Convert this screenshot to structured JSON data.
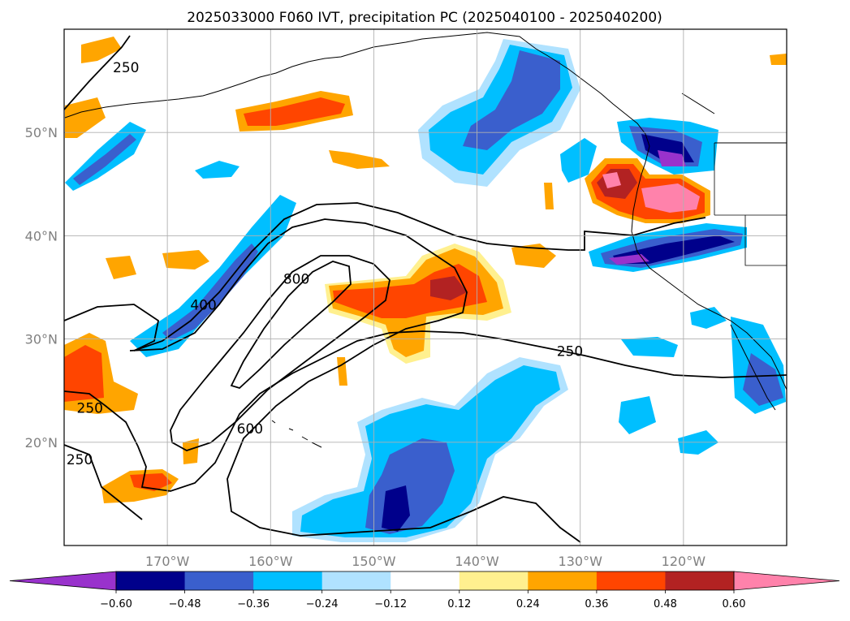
{
  "title": "2025033000 F060 IVT, precipitation PC (2025040100 - 2025040200)",
  "map": {
    "extent": {
      "lon_min": -180,
      "lon_max": -110,
      "lat_min": 10,
      "lat_max": 60
    },
    "gridlines": true,
    "lon_ticks": [
      {
        "lon": -170,
        "label": "170°W"
      },
      {
        "lon": -160,
        "label": "160°W"
      },
      {
        "lon": -150,
        "label": "150°W"
      },
      {
        "lon": -140,
        "label": "140°W"
      },
      {
        "lon": -130,
        "label": "130°W"
      },
      {
        "lon": -120,
        "label": "120°W"
      }
    ],
    "lat_ticks": [
      {
        "lat": 50,
        "label": "50°N"
      },
      {
        "lat": 40,
        "label": "40°N"
      },
      {
        "lat": 30,
        "label": "30°N"
      },
      {
        "lat": 20,
        "label": "20°N"
      }
    ],
    "contour_labels": [
      {
        "text": "250",
        "lon": -174,
        "lat": 56
      },
      {
        "text": "400",
        "lon": -166.5,
        "lat": 33
      },
      {
        "text": "800",
        "lon": -157.5,
        "lat": 35.5
      },
      {
        "text": "600",
        "lon": -162,
        "lat": 21
      },
      {
        "text": "250",
        "lon": -177.5,
        "lat": 23
      },
      {
        "text": "250",
        "lon": -178.5,
        "lat": 18
      },
      {
        "text": "250",
        "lon": -131,
        "lat": 28.5
      }
    ],
    "colors": {
      "cm": "#9932cc",
      "c-0.60": "#00008b",
      "c-0.48": "#3a5fcd",
      "c-0.36": "#00bfff",
      "c-0.24": "#b0e2ff",
      "c0.12": "#fff08f",
      "c0.24": "#ffa500",
      "c0.36": "#ff4500",
      "c0.48": "#b22222",
      "cp": "#ff82ab"
    }
  },
  "colorbar": {
    "labels": [
      "-0.60",
      "-0.48",
      "-0.36",
      "-0.24",
      "-0.12",
      "0.12",
      "0.24",
      "0.36",
      "0.48",
      "0.60"
    ],
    "segments": [
      "#00008b",
      "#3a5fcd",
      "#00bfff",
      "#b0e2ff",
      "#ffffff",
      "#fff08f",
      "#ffa500",
      "#ff4500",
      "#b22222"
    ],
    "extend_min_color": "#9932cc",
    "extend_max_color": "#ff82ab"
  }
}
